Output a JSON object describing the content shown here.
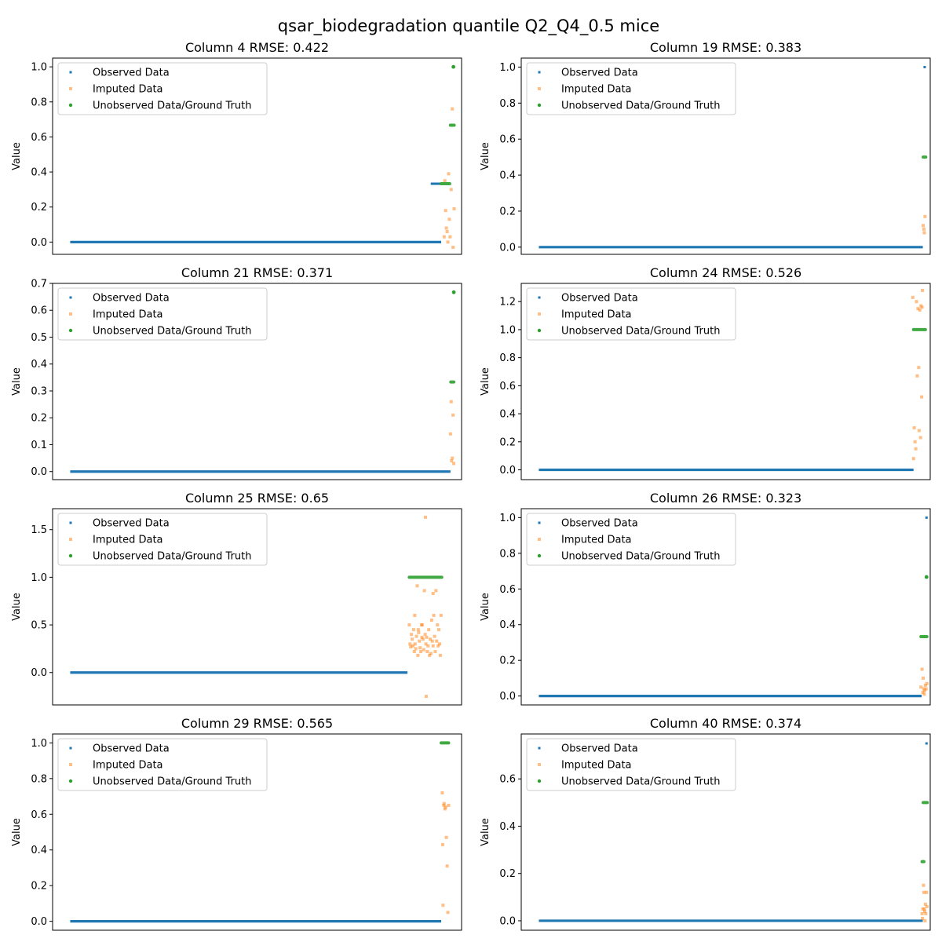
{
  "figure": {
    "title": "qsar_biodegradation quantile Q2_Q4_0.5 mice"
  },
  "legend": {
    "observed": "Observed Data",
    "imputed": "Imputed Data",
    "ground_truth": "Unobserved Data/Ground Truth",
    "placement": "top-left"
  },
  "colors": {
    "observed": "#1f77b4",
    "imputed": "#ff7f0e",
    "ground_truth": "#2ca02c"
  },
  "chart_data": [
    {
      "type": "scatter",
      "title": "Column 4 RMSE: 0.422",
      "ylabel": "Value",
      "ylim": [
        -0.07,
        1.05
      ],
      "yticks": [
        0.0,
        0.2,
        0.4,
        0.6,
        0.8,
        1.0
      ],
      "n_points": 1055,
      "series": {
        "observed": {
          "baseline_end": 1000,
          "baseline_value": 0.0,
          "points": [
            [
              975,
              0.333
            ],
            [
              980,
              0.333
            ],
            [
              985,
              0.333
            ],
            [
              990,
              0.333
            ],
            [
              995,
              0.333
            ]
          ]
        },
        "imputed": [
          [
            1008,
            0.03
          ],
          [
            1010,
            0.35
          ],
          [
            1012,
            0.18
          ],
          [
            1014,
            0.08
          ],
          [
            1016,
            0.06
          ],
          [
            1018,
            0.0
          ],
          [
            1020,
            0.39
          ],
          [
            1022,
            0.13
          ],
          [
            1024,
            0.03
          ],
          [
            1027,
            0.3
          ],
          [
            1030,
            0.76
          ],
          [
            1032,
            -0.03
          ],
          [
            1035,
            0.19
          ]
        ],
        "ground_truth": {
          "segments": [
            [
              1000,
              1023,
              0.333
            ],
            [
              1025,
              1035,
              0.667
            ]
          ],
          "points": [
            [
              1033,
              1.0
            ]
          ]
        }
      }
    },
    {
      "type": "scatter",
      "title": "Column 19 RMSE: 0.383",
      "ylabel": "Value",
      "ylim": [
        -0.04,
        1.05
      ],
      "yticks": [
        0.0,
        0.2,
        0.4,
        0.6,
        0.8,
        1.0
      ],
      "n_points": 1055,
      "series": {
        "observed": {
          "baseline_end": 1035,
          "baseline_value": 0.0,
          "points": [
            [
              1040,
              1.0
            ]
          ]
        },
        "imputed": [
          [
            1036,
            0.12
          ],
          [
            1038,
            0.1
          ],
          [
            1039,
            0.08
          ],
          [
            1041,
            0.17
          ]
        ],
        "ground_truth": {
          "segments": [
            [
              1036,
              1043,
              0.5
            ]
          ],
          "points": []
        }
      }
    },
    {
      "type": "scatter",
      "title": "Column 21 RMSE: 0.371",
      "ylabel": "Value",
      "ylim": [
        -0.03,
        0.7
      ],
      "yticks": [
        0.0,
        0.1,
        0.2,
        0.3,
        0.4,
        0.5,
        0.6,
        0.7
      ],
      "n_points": 1055,
      "series": {
        "observed": {
          "baseline_end": 1025,
          "baseline_value": 0.0,
          "points": []
        },
        "imputed": [
          [
            1025,
            0.14
          ],
          [
            1027,
            0.26
          ],
          [
            1028,
            0.04
          ],
          [
            1030,
            0.05
          ],
          [
            1032,
            0.21
          ],
          [
            1034,
            0.03
          ]
        ],
        "ground_truth": {
          "segments": [
            [
              1026,
              1034,
              0.333
            ]
          ],
          "points": [
            [
              1034,
              0.667
            ]
          ]
        }
      }
    },
    {
      "type": "scatter",
      "title": "Column 24 RMSE: 0.526",
      "ylabel": "Value",
      "ylim": [
        -0.07,
        1.33
      ],
      "yticks": [
        0.0,
        0.2,
        0.4,
        0.6,
        0.8,
        1.0,
        1.2
      ],
      "n_points": 1055,
      "series": {
        "observed": {
          "baseline_end": 1010,
          "baseline_value": 0.0,
          "points": []
        },
        "imputed": [
          [
            1008,
            1.23
          ],
          [
            1010,
            0.08
          ],
          [
            1012,
            0.3
          ],
          [
            1014,
            0.2
          ],
          [
            1016,
            0.15
          ],
          [
            1018,
            1.2
          ],
          [
            1020,
            0.67
          ],
          [
            1022,
            1.15
          ],
          [
            1024,
            0.73
          ],
          [
            1025,
            0.28
          ],
          [
            1027,
            1.14
          ],
          [
            1029,
            0.23
          ],
          [
            1030,
            1.17
          ],
          [
            1032,
            0.52
          ],
          [
            1033,
            1.16
          ],
          [
            1034,
            1.28
          ]
        ],
        "ground_truth": {
          "segments": [
            [
              1010,
              1042,
              1.0
            ]
          ],
          "points": []
        }
      }
    },
    {
      "type": "scatter",
      "title": "Column 25 RMSE: 0.65",
      "ylabel": "Value",
      "ylim": [
        -0.34,
        1.72
      ],
      "yticks": [
        0.0,
        0.5,
        1.0,
        1.5
      ],
      "n_points": 1085,
      "series": {
        "observed": {
          "baseline_end": 935,
          "baseline_value": 0.0,
          "points": []
        },
        "imputed": [
          [
            940,
            0.5
          ],
          [
            942,
            0.3
          ],
          [
            944,
            0.27
          ],
          [
            946,
            0.4
          ],
          [
            948,
            0.35
          ],
          [
            950,
            0.28
          ],
          [
            952,
            0.45
          ],
          [
            954,
            0.22
          ],
          [
            956,
            0.3
          ],
          [
            958,
            0.25
          ],
          [
            960,
            0.38
          ],
          [
            962,
            0.91
          ],
          [
            964,
            0.18
          ],
          [
            966,
            0.42
          ],
          [
            968,
            0.33
          ],
          [
            970,
            0.26
          ],
          [
            972,
            0.22
          ],
          [
            974,
            0.5
          ],
          [
            976,
            0.5
          ],
          [
            978,
            0.35
          ],
          [
            980,
            0.24
          ],
          [
            982,
            0.86
          ],
          [
            984,
            0.4
          ],
          [
            986,
            0.3
          ],
          [
            988,
            0.37
          ],
          [
            990,
            0.22
          ],
          [
            992,
            0.28
          ],
          [
            994,
            0.45
          ],
          [
            996,
            0.18
          ],
          [
            998,
            0.35
          ],
          [
            1000,
            0.2
          ],
          [
            1002,
            0.55
          ],
          [
            1004,
            0.33
          ],
          [
            1006,
            0.28
          ],
          [
            1008,
            0.6
          ],
          [
            1010,
            0.38
          ],
          [
            1012,
            0.22
          ],
          [
            1014,
            0.86
          ],
          [
            1016,
            0.33
          ],
          [
            1018,
            0.5
          ],
          [
            1020,
            0.28
          ],
          [
            1022,
            0.45
          ],
          [
            1024,
            0.3
          ],
          [
            1026,
            0.18
          ],
          [
            1028,
            0.6
          ],
          [
            955,
            0.6
          ],
          [
            985,
            1.63
          ],
          [
            987,
            -0.25
          ],
          [
            965,
            0.45
          ],
          [
            975,
            0.37
          ],
          [
            1006,
            0.83
          ]
        ],
        "ground_truth": {
          "segments": [
            [
              940,
              1030,
              1.0
            ]
          ],
          "points": []
        }
      }
    },
    {
      "type": "scatter",
      "title": "Column 26 RMSE: 0.323",
      "ylabel": "Value",
      "ylim": [
        -0.05,
        1.05
      ],
      "yticks": [
        0.0,
        0.2,
        0.4,
        0.6,
        0.8,
        1.0
      ],
      "n_points": 1055,
      "series": {
        "observed": {
          "baseline_end": 1032,
          "baseline_value": 0.0,
          "points": [
            [
              1045,
              1.0
            ]
          ]
        },
        "imputed": [
          [
            1030,
            0.05
          ],
          [
            1033,
            0.15
          ],
          [
            1035,
            0.02
          ],
          [
            1036,
            0.1
          ],
          [
            1038,
            0.04
          ],
          [
            1040,
            0.03
          ],
          [
            1042,
            0.06
          ],
          [
            1044,
            0.04
          ],
          [
            1046,
            0.07
          ],
          [
            1039,
            0.01
          ]
        ],
        "ground_truth": {
          "segments": [
            [
              1030,
              1046,
              0.333
            ]
          ],
          "points": [
            [
              1045,
              0.667
            ]
          ]
        }
      }
    },
    {
      "type": "scatter",
      "title": "Column 29 RMSE: 0.565",
      "ylabel": "Value",
      "ylim": [
        -0.05,
        1.05
      ],
      "yticks": [
        0.0,
        0.2,
        0.4,
        0.6,
        0.8,
        1.0
      ],
      "n_points": 1055,
      "series": {
        "observed": {
          "baseline_end": 1000,
          "baseline_value": 0.0,
          "points": []
        },
        "imputed": [
          [
            1003,
            0.72
          ],
          [
            1004,
            0.43
          ],
          [
            1005,
            0.09
          ],
          [
            1007,
            0.65
          ],
          [
            1008,
            0.66
          ],
          [
            1010,
            0.63
          ],
          [
            1012,
            0.64
          ],
          [
            1014,
            0.47
          ],
          [
            1016,
            0.31
          ],
          [
            1018,
            0.05
          ],
          [
            1020,
            0.65
          ]
        ],
        "ground_truth": {
          "segments": [
            [
              1000,
              1020,
              1.0
            ]
          ],
          "points": []
        }
      }
    },
    {
      "type": "scatter",
      "title": "Column 40 RMSE: 0.374",
      "ylabel": "Value",
      "ylim": [
        -0.04,
        0.79
      ],
      "yticks": [
        0.0,
        0.2,
        0.4,
        0.6
      ],
      "n_points": 1055,
      "series": {
        "observed": {
          "baseline_end": 1035,
          "baseline_value": 0.0,
          "points": [
            [
              1045,
              0.75
            ]
          ]
        },
        "imputed": [
          [
            1033,
            0.03
          ],
          [
            1034,
            0.01
          ],
          [
            1035,
            0.05
          ],
          [
            1037,
            0.15
          ],
          [
            1038,
            0.12
          ],
          [
            1040,
            0.04
          ],
          [
            1042,
            0.07
          ],
          [
            1043,
            0.03
          ],
          [
            1045,
            0.12
          ],
          [
            1046,
            0.06
          ],
          [
            1041,
            0.0
          ],
          [
            1039,
            0.05
          ]
        ],
        "ground_truth": {
          "segments": [
            [
              1033,
              1038,
              0.25
            ],
            [
              1036,
              1047,
              0.5
            ]
          ],
          "points": []
        }
      }
    }
  ]
}
